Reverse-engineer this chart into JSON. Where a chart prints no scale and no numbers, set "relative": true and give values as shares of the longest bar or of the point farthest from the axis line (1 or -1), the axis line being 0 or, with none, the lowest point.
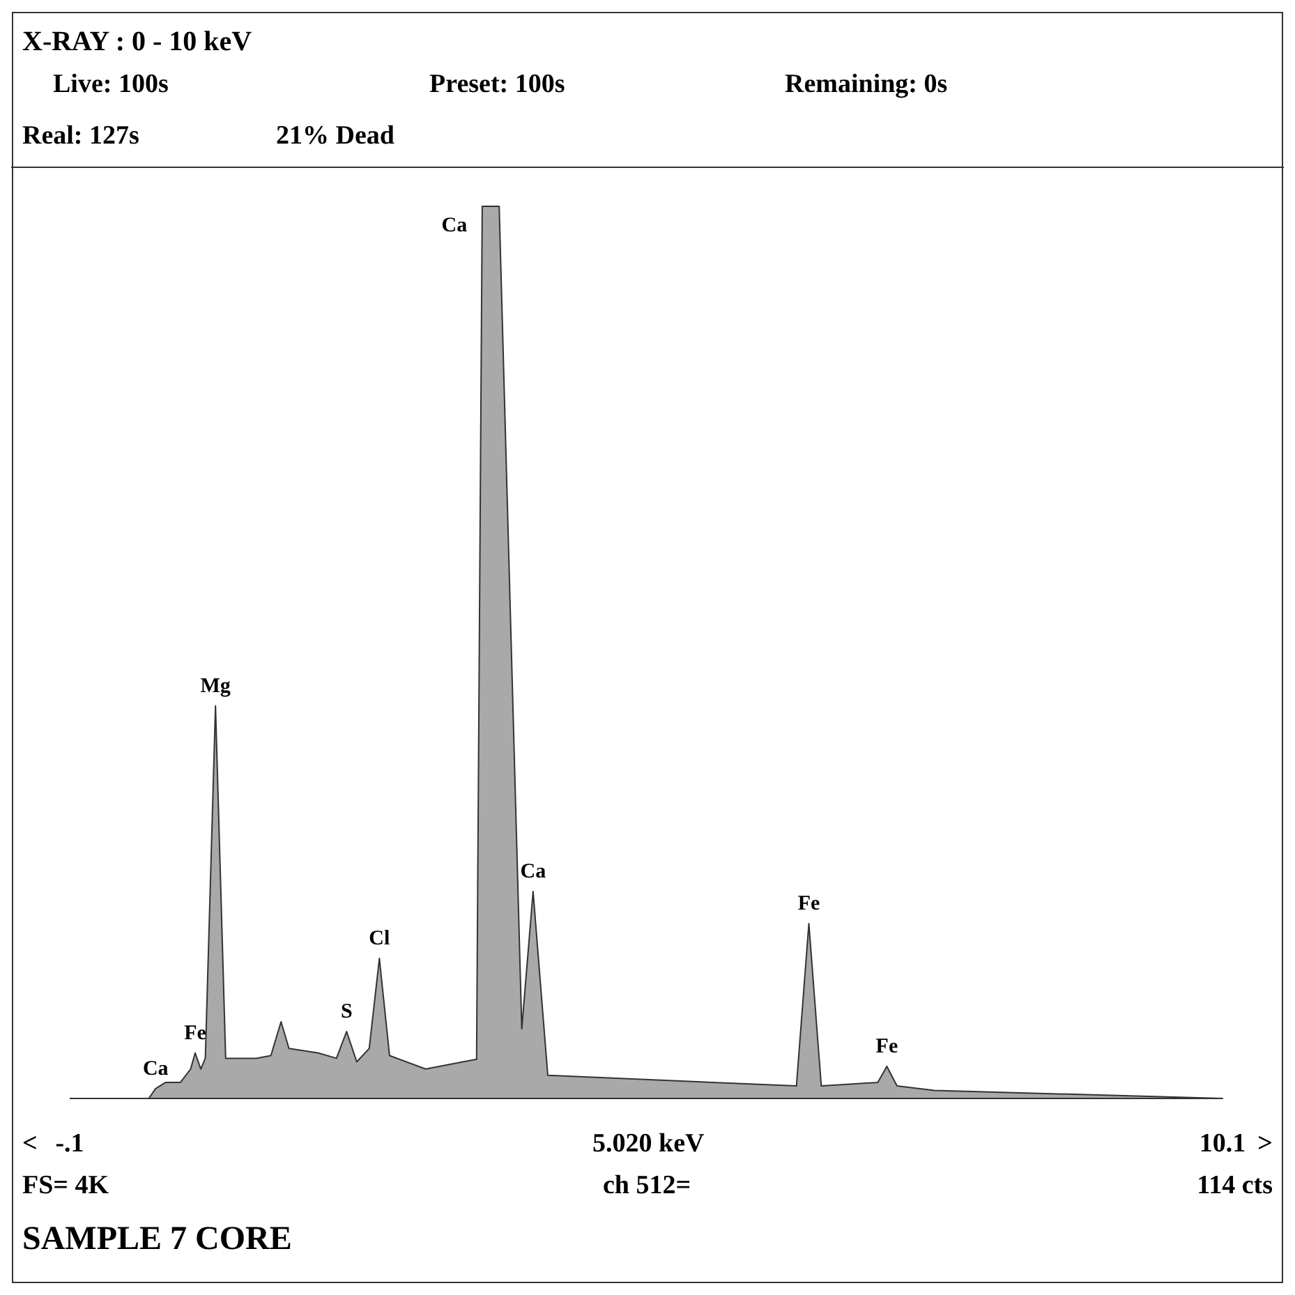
{
  "chart_data": {
    "type": "area",
    "title": "X-RAY : 0 - 10 keV",
    "relative": true,
    "xlim": [
      -0.1,
      10.1
    ],
    "xticks": [
      {
        "value": -0.1,
        "label": "-.1"
      },
      {
        "value": 5.02,
        "label": "5.020 keV"
      },
      {
        "value": 10.1,
        "label": "10.1"
      }
    ],
    "series": [
      {
        "color": "#a9a9a9",
        "x": [
          0.6,
          0.66,
          0.75,
          0.88,
          0.97,
          1.01,
          1.06,
          1.1,
          1.19,
          1.28,
          1.55,
          1.68,
          1.77,
          1.84,
          2.1,
          2.26,
          2.35,
          2.44,
          2.55,
          2.64,
          2.73,
          3.05,
          3.5,
          3.55,
          3.7,
          3.9,
          4.0,
          4.13,
          6.33,
          6.44,
          6.55,
          7.05,
          7.13,
          7.22,
          7.55,
          10.1
        ],
        "values": [
          0,
          0.011,
          0.018,
          0.018,
          0.033,
          0.051,
          0.033,
          0.045,
          0.44,
          0.045,
          0.045,
          0.048,
          0.086,
          0.056,
          0.051,
          0.045,
          0.075,
          0.041,
          0.056,
          0.157,
          0.048,
          0.033,
          0.044,
          1,
          1,
          0.078,
          0.232,
          0.026,
          0.014,
          0.196,
          0.014,
          0.018,
          0.036,
          0.014,
          0.009,
          0
        ]
      }
    ],
    "annotations": [
      {
        "text": "Ca",
        "x": 0.66,
        "y": 0.011
      },
      {
        "text": "Fe",
        "x": 1.01,
        "y": 0.051
      },
      {
        "text": "Mg",
        "x": 1.19,
        "y": 0.44
      },
      {
        "text": "S",
        "x": 2.35,
        "y": 0.075
      },
      {
        "text": "Cl",
        "x": 2.64,
        "y": 0.157
      },
      {
        "text": "Ca",
        "x": 3.55,
        "y": 1
      },
      {
        "text": "Ca",
        "x": 4.0,
        "y": 0.232
      },
      {
        "text": "Fe",
        "x": 6.44,
        "y": 0.196
      },
      {
        "text": "Fe",
        "x": 7.13,
        "y": 0.036
      },
      "Live: 100s",
      "Preset: 100s",
      "Remaining: 0s",
      "Real: 127s",
      "21% Dead",
      "FS= 4K",
      "ch 512=",
      "114 cts",
      "SAMPLE 7 CORE",
      "<",
      ">"
    ]
  }
}
